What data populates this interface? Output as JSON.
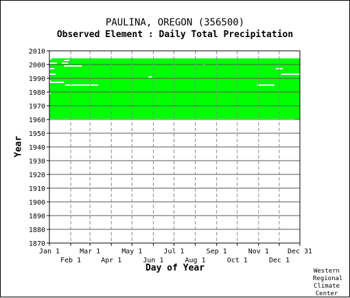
{
  "chart_data": {
    "type": "heatmap",
    "title": "PAULINA, OREGON   (356500)",
    "subtitle": "Observed Element : Daily Total Precipitation",
    "xlabel": "Day of Year",
    "ylabel": "Year",
    "xlim": [
      1,
      365
    ],
    "ylim": [
      1870,
      2010
    ],
    "y_ticks": [
      "1870",
      "1880",
      "1890",
      "1900",
      "1910",
      "1920",
      "1930",
      "1940",
      "1950",
      "1960",
      "1970",
      "1980",
      "1990",
      "2000",
      "2010"
    ],
    "x_ticks_upper": [
      {
        "label": "Jan 1",
        "day": 1
      },
      {
        "label": "Mar 1",
        "day": 60
      },
      {
        "label": "May 1",
        "day": 121
      },
      {
        "label": "Jul 1",
        "day": 182
      },
      {
        "label": "Sep 1",
        "day": 244
      },
      {
        "label": "Nov 1",
        "day": 305
      },
      {
        "label": "Dec 31",
        "day": 365
      }
    ],
    "x_ticks_lower": [
      {
        "label": "Feb 1",
        "day": 32
      },
      {
        "label": "Apr 1",
        "day": 91
      },
      {
        "label": "Jun 1",
        "day": 152
      },
      {
        "label": "Aug 1",
        "day": 213
      },
      {
        "label": "Oct 1",
        "day": 274
      },
      {
        "label": "Dec 1",
        "day": 335
      }
    ],
    "grid": true,
    "series": [
      {
        "name": "observed",
        "color": "#00ff00",
        "blocks": [
          {
            "year_start": 1960.5,
            "year_end": 2004.5,
            "day_start": 1,
            "day_end": 365
          },
          {
            "year_start": 1960.0,
            "year_end": 1960.5,
            "day_start": 358,
            "day_end": 365
          }
        ]
      },
      {
        "name": "missing",
        "color": "#ffffff",
        "segments": [
          {
            "year": 2004,
            "day_start": 1,
            "day_end": 4
          },
          {
            "year": 2003,
            "day_start": 22,
            "day_end": 30
          },
          {
            "year": 2001,
            "day_start": 1,
            "day_end": 12
          },
          {
            "year": 2001,
            "day_start": 19,
            "day_end": 28
          },
          {
            "year": 1999,
            "day_start": 22,
            "day_end": 48
          },
          {
            "year": 1997,
            "day_start": 1,
            "day_end": 8
          },
          {
            "year": 1997,
            "day_start": 330,
            "day_end": 340
          },
          {
            "year": 1993,
            "day_start": 1,
            "day_end": 10
          },
          {
            "year": 1993,
            "day_start": 338,
            "day_end": 365
          },
          {
            "year": 1988,
            "day_start": 1,
            "day_end": 3
          },
          {
            "year": 1987,
            "day_start": 1,
            "day_end": 22
          },
          {
            "year": 1985,
            "day_start": 24,
            "day_end": 72
          },
          {
            "year": 1985,
            "day_start": 303,
            "day_end": 328
          },
          {
            "year": 1991,
            "day_start": 145,
            "day_end": 150
          },
          {
            "year": 2000,
            "day_start": 225,
            "day_end": 227
          },
          {
            "year": 1979,
            "day_start": 1,
            "day_end": 3
          }
        ]
      }
    ],
    "credit": "Western Regional Climate Center"
  }
}
